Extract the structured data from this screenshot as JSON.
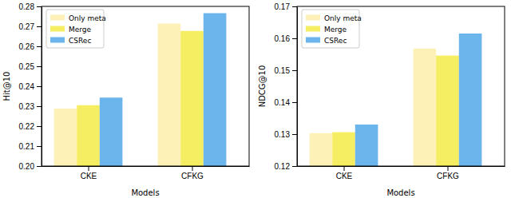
{
  "chart_data": [
    {
      "type": "bar",
      "xlabel": "Models",
      "ylabel": "Hit@10",
      "categories": [
        "CKE",
        "CFKG"
      ],
      "series": [
        {
          "name": "Only meta",
          "color": "#fdf1b8",
          "values": [
            0.2288,
            0.2714
          ]
        },
        {
          "name": "Merge",
          "color": "#f5ee63",
          "values": [
            0.2305,
            0.2677
          ]
        },
        {
          "name": "CSRec",
          "color": "#6cb5ec",
          "values": [
            0.2343,
            0.2766
          ]
        }
      ],
      "ylim": [
        0.2,
        0.28
      ],
      "yticks": [
        {
          "value": 0.2,
          "label": "0.20"
        },
        0.21,
        0.22,
        0.23,
        0.24,
        0.25,
        0.26,
        0.27,
        0.28
      ],
      "legend": "upper left"
    },
    {
      "type": "bar",
      "xlabel": "Models",
      "ylabel": "NDCG@10",
      "categories": [
        "CKE",
        "CFKG"
      ],
      "series": [
        {
          "name": "Only meta",
          "color": "#fdf1b8",
          "values": [
            0.1303,
            0.1568
          ]
        },
        {
          "name": "Merge",
          "color": "#f5ee63",
          "values": [
            0.1306,
            0.1546
          ]
        },
        {
          "name": "CSRec",
          "color": "#6cb5ec",
          "values": [
            0.133,
            0.1615
          ]
        }
      ],
      "ylim": [
        0.12,
        0.17
      ],
      "yticks": [
        0.12,
        0.13,
        0.14,
        0.15,
        0.16,
        0.17
      ],
      "legend": "upper left"
    }
  ]
}
